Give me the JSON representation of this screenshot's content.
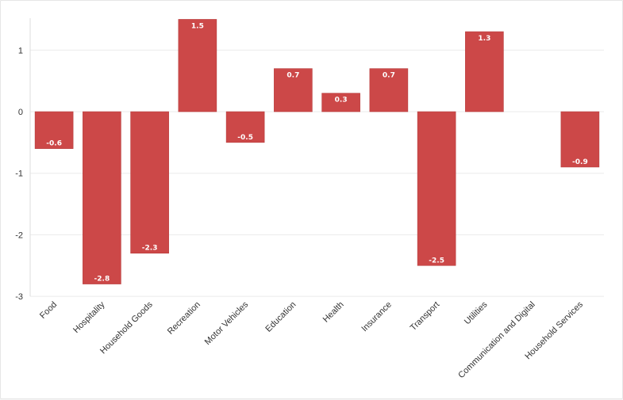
{
  "chart_data": {
    "type": "bar",
    "categories": [
      "Food",
      "Hospitality",
      "Household Goods",
      "Recreation",
      "Motor Vehicles",
      "Education",
      "Health",
      "Insurance",
      "Transport",
      "Utilities",
      "Communication and Digital",
      "Household Services"
    ],
    "values": [
      -0.6,
      -2.8,
      -2.3,
      1.5,
      -0.5,
      0.7,
      0.3,
      0.7,
      -2.5,
      1.3,
      null,
      -0.9
    ],
    "labels": [
      "-0.6",
      "-2.8",
      "-2.3",
      "1.5",
      "-0.5",
      "0.7",
      "0.3",
      "0.7",
      "-2.5",
      "1.3",
      "",
      "-0.9"
    ],
    "yticks": [
      1,
      0,
      -1,
      -2,
      -3
    ],
    "ylim": [
      -3,
      1.5
    ],
    "grid": true,
    "title": "",
    "xlabel": "",
    "ylabel": "",
    "bar_color": "#cc4848",
    "bar_edge_color": "#b83c3c"
  }
}
